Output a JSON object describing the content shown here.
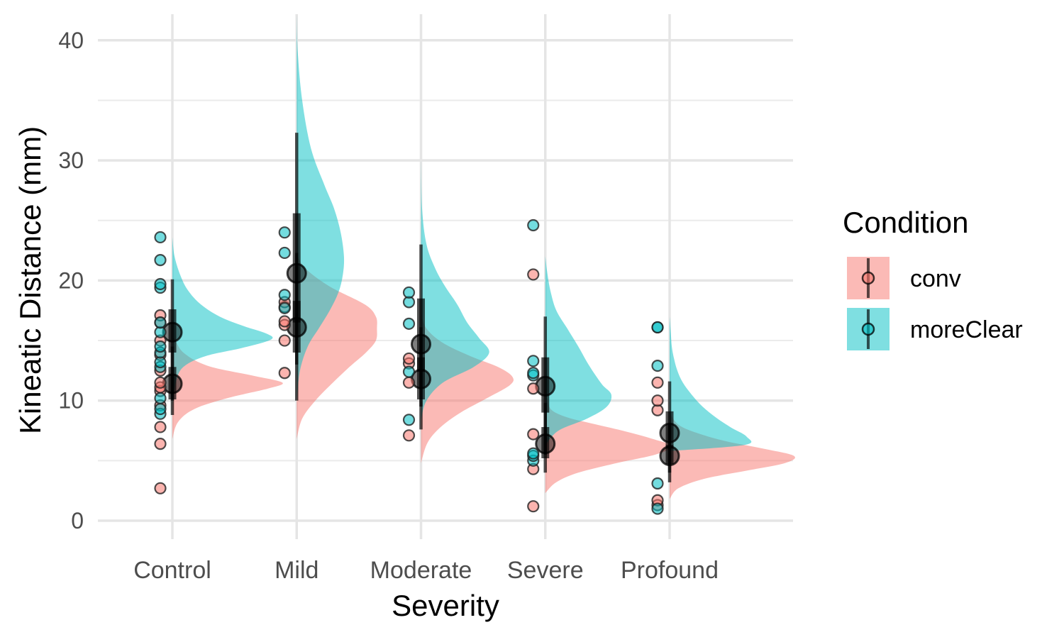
{
  "chart_data": {
    "type": "raincloud",
    "title": "",
    "xlabel": "Severity",
    "ylabel": "Kineatic Distance (mm)",
    "ylim": [
      -1.5,
      42
    ],
    "y_ticks": [
      0,
      10,
      20,
      30,
      40
    ],
    "categories": [
      "Control",
      "Mild",
      "Moderate",
      "Severe",
      "Profound"
    ],
    "grid": true,
    "legend": {
      "title": "Condition",
      "position": "right",
      "entries": [
        "conv",
        "moreClear"
      ]
    },
    "series": [
      {
        "name": "conv",
        "color": "#F8766D",
        "groups": [
          {
            "category": "Control",
            "points": [
              2.7,
              6.4,
              7.8,
              9.6,
              10.8,
              11.1,
              11.5,
              12.5,
              13.8,
              15.0,
              16.5,
              17.1
            ],
            "median": 11.4,
            "interval_66": [
              10.1,
              12.8
            ],
            "interval_95": [
              8.8,
              14.5
            ],
            "density": {
              "y": [
                6.8,
                8.2,
                9.3,
                10.2,
                11.0,
                11.5,
                12.1,
                12.9,
                14.0,
                15.2
              ],
              "w": [
                0.0,
                0.05,
                0.2,
                0.5,
                0.87,
                1.0,
                0.72,
                0.32,
                0.1,
                0.02
              ]
            }
          },
          {
            "category": "Mild",
            "points": [
              12.3,
              15.0,
              16.3,
              16.6,
              17.8,
              18.2
            ],
            "median": 16.1,
            "interval_66": [
              14.0,
              18.3
            ],
            "interval_95": [
              10.0,
              22.3
            ],
            "density": {
              "y": [
                6.8,
                8.5,
                10.0,
                11.5,
                12.8,
                14.0,
                15.0,
                16.0,
                17.0,
                18.0,
                19.5,
                21.0,
                22.2
              ],
              "w": [
                0.0,
                0.05,
                0.17,
                0.33,
                0.48,
                0.63,
                0.72,
                0.73,
                0.72,
                0.62,
                0.3,
                0.08,
                0.0
              ]
            }
          },
          {
            "category": "Moderate",
            "points": [
              7.1,
              11.5,
              13.1,
              13.5
            ],
            "median": 11.8,
            "interval_66": [
              10.1,
              13.6
            ],
            "interval_95": [
              7.6,
              16.1
            ],
            "density": {
              "y": [
                4.8,
                6.5,
                7.8,
                9.0,
                10.2,
                11.3,
                12.0,
                12.8,
                13.7,
                14.8,
                16.0,
                17.3
              ],
              "w": [
                0.0,
                0.06,
                0.18,
                0.36,
                0.6,
                0.81,
                0.83,
                0.7,
                0.45,
                0.2,
                0.05,
                0.0
              ]
            }
          },
          {
            "category": "Severe",
            "points": [
              1.2,
              4.3,
              7.2,
              11.0,
              20.5
            ],
            "median": 6.4,
            "interval_66": [
              5.2,
              7.8
            ],
            "interval_95": [
              4.0,
              9.8
            ],
            "density": {
              "y": [
                2.3,
                3.2,
                4.0,
                4.8,
                5.5,
                6.2,
                6.8,
                7.5,
                8.1,
                8.6,
                9.2,
                10.0,
                11.0
              ],
              "w": [
                0.0,
                0.1,
                0.3,
                0.65,
                1.0,
                1.15,
                0.98,
                0.7,
                0.42,
                0.2,
                0.06,
                0.02,
                0.0
              ]
            }
          },
          {
            "category": "Profound",
            "points": [
              1.3,
              1.7,
              9.2,
              10.0,
              11.5
            ],
            "median": 5.4,
            "interval_66": [
              4.7,
              6.3
            ],
            "interval_95": [
              3.2,
              8.0
            ],
            "density": {
              "y": [
                1.8,
                2.7,
                3.5,
                4.2,
                4.8,
                5.4,
                6.0,
                6.6,
                7.3,
                8.0,
                9.0
              ],
              "w": [
                0.0,
                0.08,
                0.32,
                0.72,
                1.05,
                1.13,
                0.85,
                0.52,
                0.25,
                0.08,
                0.0
              ]
            }
          }
        ]
      },
      {
        "name": "moreClear",
        "color": "#00BFC4",
        "groups": [
          {
            "category": "Control",
            "points": [
              8.9,
              9.3,
              10.2,
              12.8,
              13.2,
              14.0,
              14.5,
              15.7,
              16.5,
              19.4,
              19.7,
              21.7,
              23.6
            ],
            "median": 15.7,
            "interval_66": [
              14.0,
              17.6
            ],
            "interval_95": [
              10.0,
              20.1
            ],
            "density": {
              "y": [
                9.6,
                11.5,
                12.8,
                13.7,
                14.4,
                15.1,
                15.6,
                16.2,
                17.0,
                18.0,
                19.2,
                20.5,
                22.0,
                23.6
              ],
              "w": [
                0.0,
                0.03,
                0.1,
                0.3,
                0.64,
                0.9,
                0.85,
                0.65,
                0.43,
                0.26,
                0.14,
                0.07,
                0.02,
                0.0
              ]
            }
          },
          {
            "category": "Mild",
            "points": [
              17.7,
              18.8,
              22.3,
              24.0
            ],
            "median": 20.6,
            "interval_66": [
              16.5,
              25.6
            ],
            "interval_95": [
              13.0,
              32.3
            ],
            "density": {
              "y": [
                10.0,
                12.5,
                14.5,
                16.0,
                17.5,
                19.0,
                20.5,
                22.0,
                24.0,
                26.0,
                28.0,
                31.0,
                35.0,
                39.0,
                42.0
              ],
              "w": [
                0.0,
                0.03,
                0.1,
                0.2,
                0.3,
                0.38,
                0.42,
                0.43,
                0.4,
                0.34,
                0.25,
                0.13,
                0.05,
                0.01,
                0.0
              ]
            }
          },
          {
            "category": "Moderate",
            "points": [
              8.4,
              12.4,
              16.4,
              18.2,
              19.0
            ],
            "median": 14.7,
            "interval_66": [
              12.4,
              18.5
            ],
            "interval_95": [
              9.5,
              23.0
            ],
            "density": {
              "y": [
                8.4,
                10.0,
                11.5,
                12.8,
                14.0,
                15.2,
                16.5,
                18.0,
                19.5,
                21.0,
                23.0,
                26.0,
                30.0
              ],
              "w": [
                0.0,
                0.05,
                0.2,
                0.48,
                0.62,
                0.53,
                0.42,
                0.33,
                0.22,
                0.13,
                0.05,
                0.01,
                0.0
              ]
            }
          },
          {
            "category": "Severe",
            "points": [
              5.0,
              5.4,
              5.6,
              12.1,
              12.3,
              13.3,
              24.6
            ],
            "median": 11.2,
            "interval_66": [
              9.0,
              13.6
            ],
            "interval_95": [
              5.5,
              17.0
            ],
            "density": {
              "y": [
                6.3,
                7.5,
                8.5,
                9.5,
                10.5,
                11.3,
                12.2,
                13.2,
                14.5,
                16.0,
                17.5,
                19.0,
                20.5,
                22.0
              ],
              "w": [
                0.0,
                0.12,
                0.38,
                0.56,
                0.6,
                0.52,
                0.45,
                0.38,
                0.3,
                0.2,
                0.1,
                0.05,
                0.02,
                0.0
              ]
            }
          },
          {
            "category": "Profound",
            "points": [
              1.0,
              3.1,
              12.9,
              16.1,
              16.1
            ],
            "median": 7.3,
            "interval_66": [
              6.0,
              9.1
            ],
            "interval_95": [
              4.0,
              11.6
            ],
            "density": {
              "y": [
                5.8,
                6.3,
                7.0,
                7.8,
                8.6,
                9.5,
                10.5,
                11.5,
                12.5,
                13.5,
                14.5,
                15.8,
                17.0
              ],
              "w": [
                0.0,
                0.68,
                0.7,
                0.55,
                0.42,
                0.3,
                0.2,
                0.12,
                0.07,
                0.04,
                0.02,
                0.01,
                0.0
              ]
            }
          }
        ]
      }
    ]
  }
}
